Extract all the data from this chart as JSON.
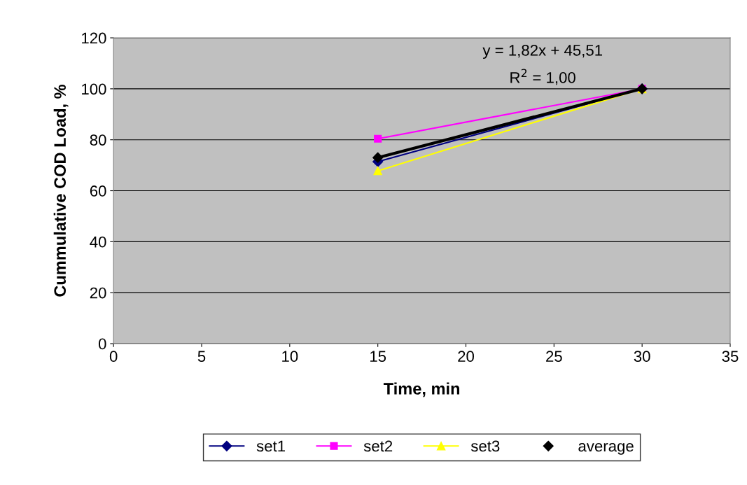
{
  "chart_data": {
    "type": "line",
    "xlabel": "Time, min",
    "ylabel": "Cummulative COD Load, %",
    "x": [
      15,
      30
    ],
    "series": [
      {
        "name": "set1",
        "color": "#000080",
        "values": [
          71.4,
          100
        ],
        "marker": "diamond"
      },
      {
        "name": "set2",
        "color": "#ff00ff",
        "values": [
          80.4,
          100
        ],
        "marker": "square"
      },
      {
        "name": "set3",
        "color": "#ffff00",
        "values": [
          67.8,
          100
        ],
        "marker": "triangle"
      },
      {
        "name": "average",
        "color": "#000000",
        "values": [
          73,
          100
        ],
        "marker": "diamond",
        "type": "scatter"
      },
      {
        "color": "#000000",
        "values": [
          73,
          100
        ],
        "marker": "none",
        "type": "line"
      }
    ],
    "xlim": [
      0,
      35
    ],
    "xticks": [
      0,
      5,
      10,
      15,
      20,
      25,
      30,
      35
    ],
    "ylim": [
      0,
      120
    ],
    "yticks": [
      0,
      20,
      40,
      60,
      80,
      100,
      120
    ],
    "grid": "y",
    "legend": "bottom",
    "annotations": [
      "y = 1,82x + 45,51",
      "R$^{2}$ = 1,00"
    ]
  }
}
